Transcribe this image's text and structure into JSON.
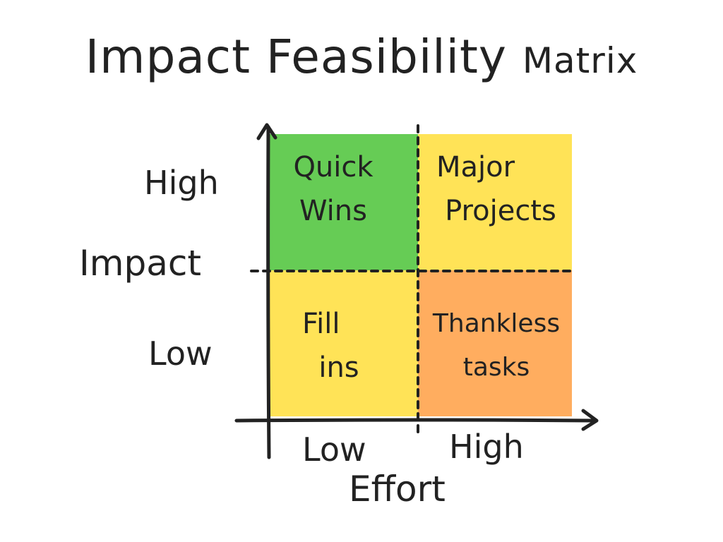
{
  "title": {
    "main": "Impact Feasibility",
    "suffix": "Matrix"
  },
  "colors": {
    "quick_wins": "#66cc55",
    "major_projects": "#ffe357",
    "fill_ins": "#ffe357",
    "thankless_tasks": "#ffad5f",
    "ink": "#222222"
  },
  "quadrants": {
    "quick_wins": {
      "line1": "Quick",
      "line2": "Wins"
    },
    "major_projects": {
      "line1": "Major",
      "line2": "Projects"
    },
    "fill_ins": {
      "line1": "Fill",
      "line2": "ins"
    },
    "thankless_tasks": {
      "line1": "Thankless",
      "line2": "tasks"
    }
  },
  "y_axis": {
    "title": "Impact",
    "high": "High",
    "low": "Low"
  },
  "x_axis": {
    "title": "Effort",
    "low": "Low",
    "high": "High"
  }
}
